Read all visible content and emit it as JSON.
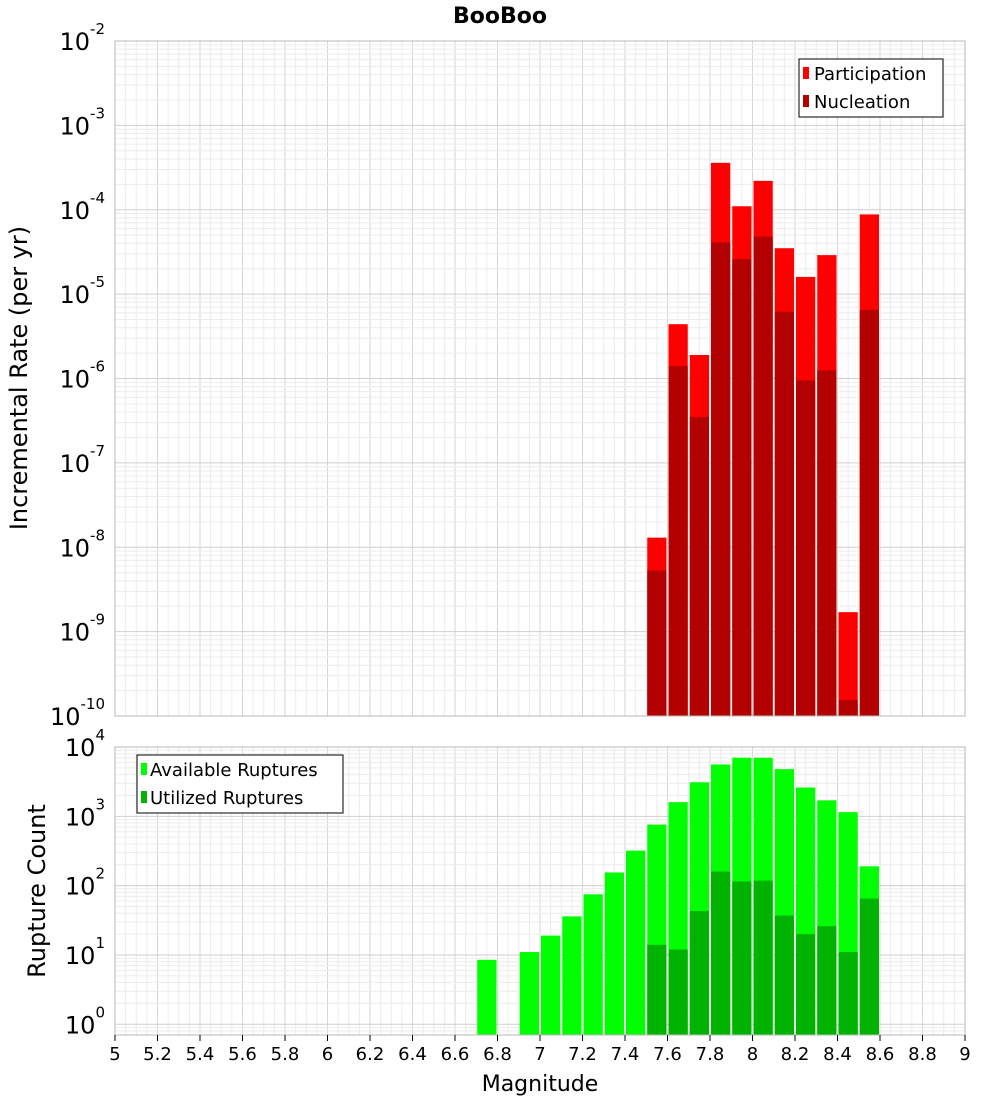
{
  "chart_data": [
    {
      "type": "bar",
      "title": "BooBoo",
      "ylabel": "Incremental Rate (per yr)",
      "yscale": "log",
      "ylim": [
        1e-10,
        0.01
      ],
      "ytick_labels": [
        {
          "base": "10",
          "exp": "-10"
        },
        {
          "base": "10",
          "exp": "-9"
        },
        {
          "base": "10",
          "exp": "-8"
        },
        {
          "base": "10",
          "exp": "-7"
        },
        {
          "base": "10",
          "exp": "-6"
        },
        {
          "base": "10",
          "exp": "-5"
        },
        {
          "base": "10",
          "exp": "-4"
        },
        {
          "base": "10",
          "exp": "-3"
        },
        {
          "base": "10",
          "exp": "-2"
        }
      ],
      "grid": true,
      "legend": "top-right",
      "series": [
        {
          "name": "Participation",
          "color": "#ff0000",
          "points": [
            {
              "x": 7.55,
              "y": 1.3e-08
            },
            {
              "x": 7.65,
              "y": 4.4e-06
            },
            {
              "x": 7.75,
              "y": 1.9e-06
            },
            {
              "x": 7.85,
              "y": 0.00036
            },
            {
              "x": 7.95,
              "y": 0.00011
            },
            {
              "x": 8.05,
              "y": 0.00022
            },
            {
              "x": 8.15,
              "y": 3.5e-05
            },
            {
              "x": 8.25,
              "y": 1.6e-05
            },
            {
              "x": 8.35,
              "y": 2.9e-05
            },
            {
              "x": 8.45,
              "y": 1.7e-09
            },
            {
              "x": 8.55,
              "y": 8.8e-05
            }
          ]
        },
        {
          "name": "Nucleation",
          "color": "#b30000",
          "points": [
            {
              "x": 7.55,
              "y": 5.3e-09
            },
            {
              "x": 7.65,
              "y": 1.4e-06
            },
            {
              "x": 7.75,
              "y": 3.5e-07
            },
            {
              "x": 7.85,
              "y": 4.1e-05
            },
            {
              "x": 7.95,
              "y": 2.6e-05
            },
            {
              "x": 8.05,
              "y": 4.8e-05
            },
            {
              "x": 8.15,
              "y": 6.2e-06
            },
            {
              "x": 8.25,
              "y": 9.5e-07
            },
            {
              "x": 8.35,
              "y": 1.25e-06
            },
            {
              "x": 8.45,
              "y": 1.55e-10
            },
            {
              "x": 8.55,
              "y": 6.5e-06
            }
          ]
        }
      ]
    },
    {
      "type": "bar",
      "ylabel": "Rupture Count",
      "xlabel": "Magnitude",
      "yscale": "log",
      "ylim": [
        0.7,
        10000
      ],
      "xlim": [
        5,
        9
      ],
      "xtick_labels": [
        "5",
        "5.2",
        "5.4",
        "5.6",
        "5.8",
        "6",
        "6.2",
        "6.4",
        "6.6",
        "6.8",
        "7",
        "7.2",
        "7.4",
        "7.6",
        "7.8",
        "8",
        "8.2",
        "8.4",
        "8.6",
        "8.8",
        "9"
      ],
      "ytick_labels": [
        {
          "base": "10",
          "exp": "0"
        },
        {
          "base": "10",
          "exp": "1"
        },
        {
          "base": "10",
          "exp": "2"
        },
        {
          "base": "10",
          "exp": "3"
        },
        {
          "base": "10",
          "exp": "4"
        }
      ],
      "grid": true,
      "legend": "top-left",
      "series": [
        {
          "name": "Available Ruptures",
          "color": "#00ff00",
          "points": [
            {
              "x": 6.75,
              "y": 8.5
            },
            {
              "x": 6.95,
              "y": 11
            },
            {
              "x": 7.05,
              "y": 19
            },
            {
              "x": 7.15,
              "y": 36
            },
            {
              "x": 7.25,
              "y": 75
            },
            {
              "x": 7.35,
              "y": 155
            },
            {
              "x": 7.45,
              "y": 320
            },
            {
              "x": 7.55,
              "y": 760
            },
            {
              "x": 7.65,
              "y": 1600
            },
            {
              "x": 7.75,
              "y": 3100
            },
            {
              "x": 7.85,
              "y": 5600
            },
            {
              "x": 7.95,
              "y": 7000
            },
            {
              "x": 8.05,
              "y": 7000
            },
            {
              "x": 8.15,
              "y": 4800
            },
            {
              "x": 8.25,
              "y": 2600
            },
            {
              "x": 8.35,
              "y": 1700
            },
            {
              "x": 8.45,
              "y": 1150
            },
            {
              "x": 8.55,
              "y": 190
            }
          ]
        },
        {
          "name": "Utilized Ruptures",
          "color": "#00b300",
          "points": [
            {
              "x": 7.55,
              "y": 14
            },
            {
              "x": 7.65,
              "y": 12
            },
            {
              "x": 7.75,
              "y": 43
            },
            {
              "x": 7.85,
              "y": 160
            },
            {
              "x": 7.95,
              "y": 115
            },
            {
              "x": 8.05,
              "y": 118
            },
            {
              "x": 8.15,
              "y": 37
            },
            {
              "x": 8.25,
              "y": 20
            },
            {
              "x": 8.35,
              "y": 26
            },
            {
              "x": 8.45,
              "y": 11
            },
            {
              "x": 8.55,
              "y": 65
            }
          ]
        }
      ]
    }
  ]
}
